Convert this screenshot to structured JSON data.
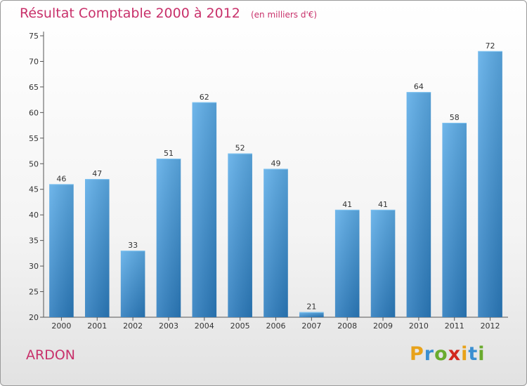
{
  "title": "Résultat Comptable 2000 à 2012",
  "subtitle": "(en milliers d'€)",
  "commune": "ARDON",
  "logo": {
    "letters": [
      "P",
      "r",
      "o",
      "x",
      "i",
      "t",
      "i"
    ],
    "colors": [
      "#e8a21a",
      "#3a8fd1",
      "#6aab2e",
      "#d2281e",
      "#e8a21a",
      "#3a8fd1",
      "#6aab2e"
    ]
  },
  "colors": {
    "title": "#c8306a",
    "bar_top": "#5dade8",
    "bar_bottom": "#2b7bbd",
    "grid": "#d8d8d8"
  },
  "chart_data": {
    "type": "bar",
    "title": "Résultat Comptable 2000 à 2012",
    "subtitle": "(en milliers d'€)",
    "categories": [
      "2000",
      "2001",
      "2002",
      "2003",
      "2004",
      "2005",
      "2006",
      "2007",
      "2008",
      "2009",
      "2010",
      "2011",
      "2012"
    ],
    "values": [
      46,
      47,
      33,
      51,
      62,
      52,
      49,
      21,
      41,
      41,
      64,
      58,
      72
    ],
    "ylim": [
      20,
      75
    ],
    "yticks": [
      20,
      25,
      30,
      35,
      40,
      45,
      50,
      55,
      60,
      65,
      70,
      75
    ],
    "grid": false,
    "xlabel": "",
    "ylabel": ""
  }
}
